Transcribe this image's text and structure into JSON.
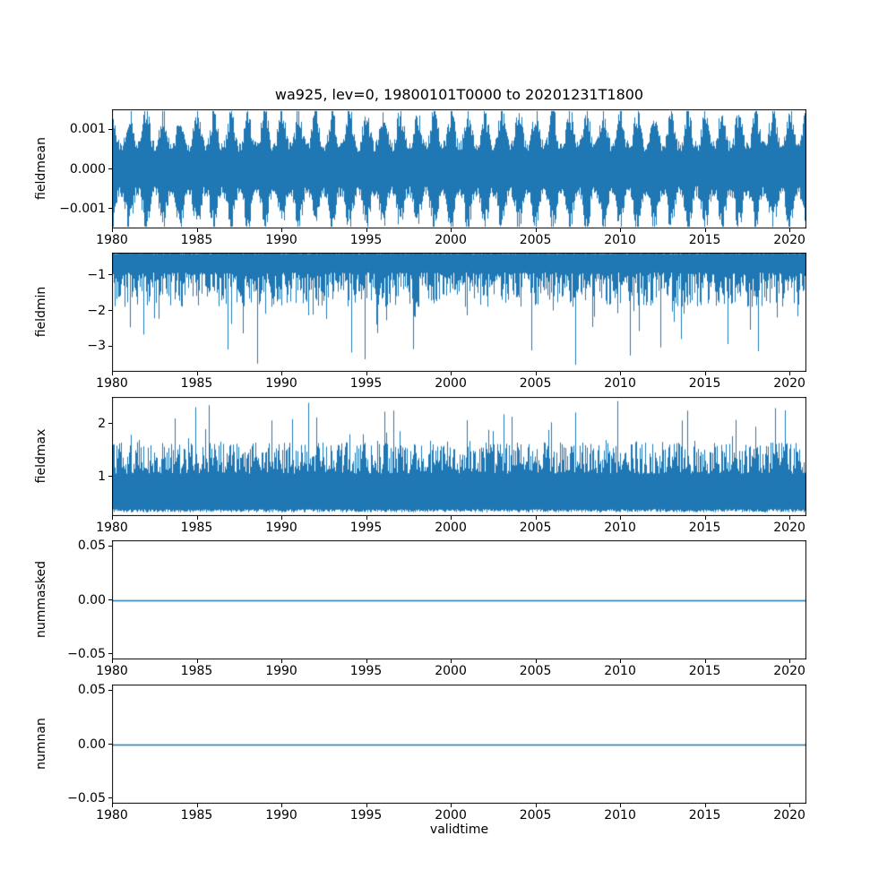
{
  "figure": {
    "title": "wa925, lev=0, 19800101T0000 to 20201231T1800",
    "xlabel": "validtime",
    "xticks": [
      1980,
      1985,
      1990,
      1995,
      2000,
      2005,
      2010,
      2015,
      2020
    ],
    "xlim": [
      1980,
      2021
    ],
    "line_color": "#1f77b4",
    "axis_color": "#000000",
    "background": "#ffffff"
  },
  "chart_data": [
    {
      "type": "line",
      "name": "fieldmean",
      "ylabel": "fieldmean",
      "yticks": [
        {
          "label": "0.001",
          "value": 0.001
        },
        {
          "label": "0.000",
          "value": 0.0
        },
        {
          "label": "−0.001",
          "value": -0.001
        }
      ],
      "ylim": [
        -0.0015,
        0.0015
      ],
      "pattern": "dense-noise-seasonal",
      "description": "dense noisy series oscillating around 0 with an annual seasonal envelope, extremes near ±0.0014",
      "envelope": {
        "min_amp": 0.0006,
        "max_amp": 0.00142,
        "period_years": 1
      }
    },
    {
      "type": "line",
      "name": "fieldmin",
      "ylabel": "fieldmin",
      "yticks": [
        {
          "label": "−1",
          "value": -1
        },
        {
          "label": "−2",
          "value": -2
        },
        {
          "label": "−3",
          "value": -3
        }
      ],
      "ylim": [
        -3.72,
        -0.38
      ],
      "pattern": "dense-noise-spikes-down",
      "description": "dense noisy band roughly between -0.4 and -1.9 with occasional downward spikes reaching about -3.5",
      "band": [
        -1.9,
        -0.42
      ],
      "spikes": {
        "rate": 0.05,
        "extent": [
          -2.0,
          -3.6
        ]
      }
    },
    {
      "type": "line",
      "name": "fieldmax",
      "ylabel": "fieldmax",
      "yticks": [
        {
          "label": "2",
          "value": 2
        },
        {
          "label": "1",
          "value": 1
        }
      ],
      "ylim": [
        0.25,
        2.5
      ],
      "pattern": "dense-noise-spikes-up",
      "description": "dense noisy band roughly between 0.3 and 1.65 with frequent upward spikes reaching about 2.45",
      "band": [
        0.32,
        1.65
      ],
      "spikes": {
        "rate": 0.08,
        "extent": [
          1.6,
          2.45
        ]
      }
    },
    {
      "type": "line",
      "name": "nummasked",
      "ylabel": "nummasked",
      "yticks": [
        {
          "label": "0.05",
          "value": 0.05
        },
        {
          "label": "0.00",
          "value": 0.0
        },
        {
          "label": "−0.05",
          "value": -0.05
        }
      ],
      "ylim": [
        -0.055,
        0.055
      ],
      "pattern": "constant",
      "constant_value": 0.0,
      "description": "constant flat line at 0 for the whole period"
    },
    {
      "type": "line",
      "name": "numnan",
      "ylabel": "numnan",
      "yticks": [
        {
          "label": "0.05",
          "value": 0.05
        },
        {
          "label": "0.00",
          "value": 0.0
        },
        {
          "label": "−0.05",
          "value": -0.05
        }
      ],
      "ylim": [
        -0.055,
        0.055
      ],
      "pattern": "constant",
      "constant_value": 0.0,
      "description": "constant flat line at 0 for the whole period"
    }
  ]
}
